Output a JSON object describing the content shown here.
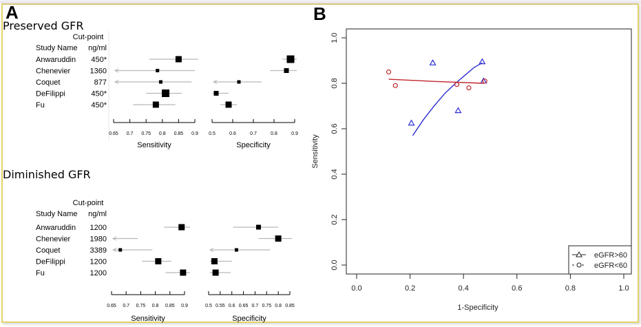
{
  "figure": {
    "panel_a_letter": "A",
    "panel_b_letter": "B",
    "frame_color": "#e2d36a"
  },
  "chart_data": [
    {
      "type": "forest",
      "panel": "A",
      "title": "Preserved GFR",
      "column_headers": {
        "study": "Study Name",
        "cutpoint_line1": "Cut-point",
        "cutpoint_line2": "ng/ml"
      },
      "studies": [
        {
          "name": "Anwaruddin",
          "cutpoint": "450*",
          "sens": 0.85,
          "sens_lo": 0.76,
          "sens_hi": 0.91,
          "spec": 0.88,
          "spec_lo": 0.84,
          "spec_hi": 0.91,
          "weight_sens": 3,
          "weight_spec": 4
        },
        {
          "name": "Chenevier",
          "cutpoint": "1360",
          "sens": 0.785,
          "sens_lo": 0.64,
          "sens_hi": 0.9,
          "spec": 0.86,
          "spec_lo": 0.78,
          "spec_hi": 0.91,
          "weight_sens": 1,
          "weight_spec": 2
        },
        {
          "name": "Coquet",
          "cutpoint": "877",
          "sens": 0.795,
          "sens_lo": 0.64,
          "sens_hi": 0.89,
          "spec": 0.63,
          "spec_lo": 0.49,
          "spec_hi": 0.74,
          "weight_sens": 1,
          "weight_spec": 1
        },
        {
          "name": "DeFilippi",
          "cutpoint": "450*",
          "sens": 0.81,
          "sens_lo": 0.75,
          "sens_hi": 0.86,
          "spec": 0.52,
          "spec_lo": 0.505,
          "spec_hi": 0.58,
          "weight_sens": 4,
          "weight_spec": 2
        },
        {
          "name": "Fu",
          "cutpoint": "450*",
          "sens": 0.78,
          "sens_lo": 0.71,
          "sens_hi": 0.84,
          "spec": 0.58,
          "spec_lo": 0.54,
          "spec_hi": 0.62,
          "weight_sens": 3,
          "weight_spec": 3
        }
      ],
      "sens_axis": {
        "label": "Sensitivity",
        "ticks": [
          "0.65",
          "0.7",
          "0.75",
          "0.8",
          "0.85",
          "0.9"
        ],
        "range": [
          0.65,
          0.9
        ]
      },
      "spec_axis": {
        "label": "Specificity",
        "ticks": [
          "0.5",
          "0.6",
          "0.7",
          "0.8",
          "0.9"
        ],
        "range": [
          0.5,
          0.9
        ]
      }
    },
    {
      "type": "forest",
      "panel": "A",
      "title": "Diminished GFR",
      "column_headers": {
        "study": "Study Name",
        "cutpoint_line1": "Cut-point",
        "cutpoint_line2": "ng/ml"
      },
      "studies": [
        {
          "name": "Anwaruddin",
          "cutpoint": "1200",
          "sens": 0.89,
          "sens_lo": 0.83,
          "sens_hi": 0.935,
          "spec": 0.715,
          "spec_lo": 0.605,
          "spec_hi": 0.8,
          "weight_sens": 3,
          "weight_spec": 2
        },
        {
          "name": "Chenevier",
          "cutpoint": "1980",
          "sens": null,
          "sens_lo": 0.64,
          "sens_hi": 0.74,
          "spec": 0.8,
          "spec_lo": 0.715,
          "spec_hi": 0.86,
          "weight_sens": 0,
          "weight_spec": 3
        },
        {
          "name": "Coquet",
          "cutpoint": "3389",
          "sens": 0.68,
          "sens_lo": 0.64,
          "sens_hi": 0.79,
          "spec": 0.62,
          "spec_lo": 0.49,
          "spec_hi": 0.765,
          "weight_sens": 1,
          "weight_spec": 1
        },
        {
          "name": "DeFilippi",
          "cutpoint": "1200",
          "sens": 0.81,
          "sens_lo": 0.755,
          "sens_hi": 0.855,
          "spec": 0.525,
          "spec_lo": 0.505,
          "spec_hi": 0.6,
          "weight_sens": 3,
          "weight_spec": 3
        },
        {
          "name": "Fu",
          "cutpoint": "1200",
          "sens": 0.895,
          "sens_lo": 0.835,
          "sens_hi": 0.93,
          "spec": 0.53,
          "spec_lo": 0.505,
          "spec_hi": 0.595,
          "weight_sens": 3,
          "weight_spec": 3
        }
      ],
      "sens_axis": {
        "label": "Sensitivity",
        "ticks": [
          "0.65",
          "0.7",
          "0.75",
          "0.8",
          "0.85",
          "0.9"
        ],
        "range": [
          0.65,
          0.9
        ]
      },
      "spec_axis": {
        "label": "Specificity",
        "ticks": [
          "0.5",
          "0.55",
          "0.6",
          "0.65",
          "0.7",
          "0.75",
          "0.8",
          "0.85"
        ],
        "range": [
          0.5,
          0.85
        ]
      }
    },
    {
      "type": "scatter",
      "panel": "B",
      "title": "",
      "xlabel": "1-Specificity",
      "ylabel": "Sensitivity",
      "xlim": [
        0.0,
        1.0
      ],
      "ylim": [
        0.0,
        1.0
      ],
      "xticks": [
        "0.0",
        "0.2",
        "0.4",
        "0.6",
        "0.8",
        "1.0"
      ],
      "yticks": [
        "0.0",
        "0.2",
        "0.4",
        "0.6",
        "0.8",
        "1.0"
      ],
      "legend_position": "bottom-right",
      "series": [
        {
          "name": "eGFR>60",
          "marker": "triangle",
          "color": "#2b2bd0",
          "points": [
            [
              0.285,
              0.89
            ],
            [
              0.47,
              0.895
            ],
            [
              0.38,
              0.68
            ],
            [
              0.205,
              0.625
            ],
            [
              0.475,
              0.81
            ]
          ],
          "fit_curve": [
            [
              0.21,
              0.57
            ],
            [
              0.25,
              0.64
            ],
            [
              0.29,
              0.7
            ],
            [
              0.33,
              0.755
            ],
            [
              0.37,
              0.8
            ],
            [
              0.41,
              0.84
            ],
            [
              0.44,
              0.87
            ],
            [
              0.47,
              0.89
            ]
          ]
        },
        {
          "name": "eGFR<60",
          "marker": "circle",
          "color": "#c0262d",
          "points": [
            [
              0.12,
              0.85
            ],
            [
              0.145,
              0.79
            ],
            [
              0.375,
              0.795
            ],
            [
              0.42,
              0.78
            ],
            [
              0.48,
              0.81
            ]
          ],
          "fit_curve": [
            [
              0.12,
              0.818
            ],
            [
              0.3,
              0.808
            ],
            [
              0.475,
              0.8
            ]
          ]
        }
      ]
    }
  ]
}
